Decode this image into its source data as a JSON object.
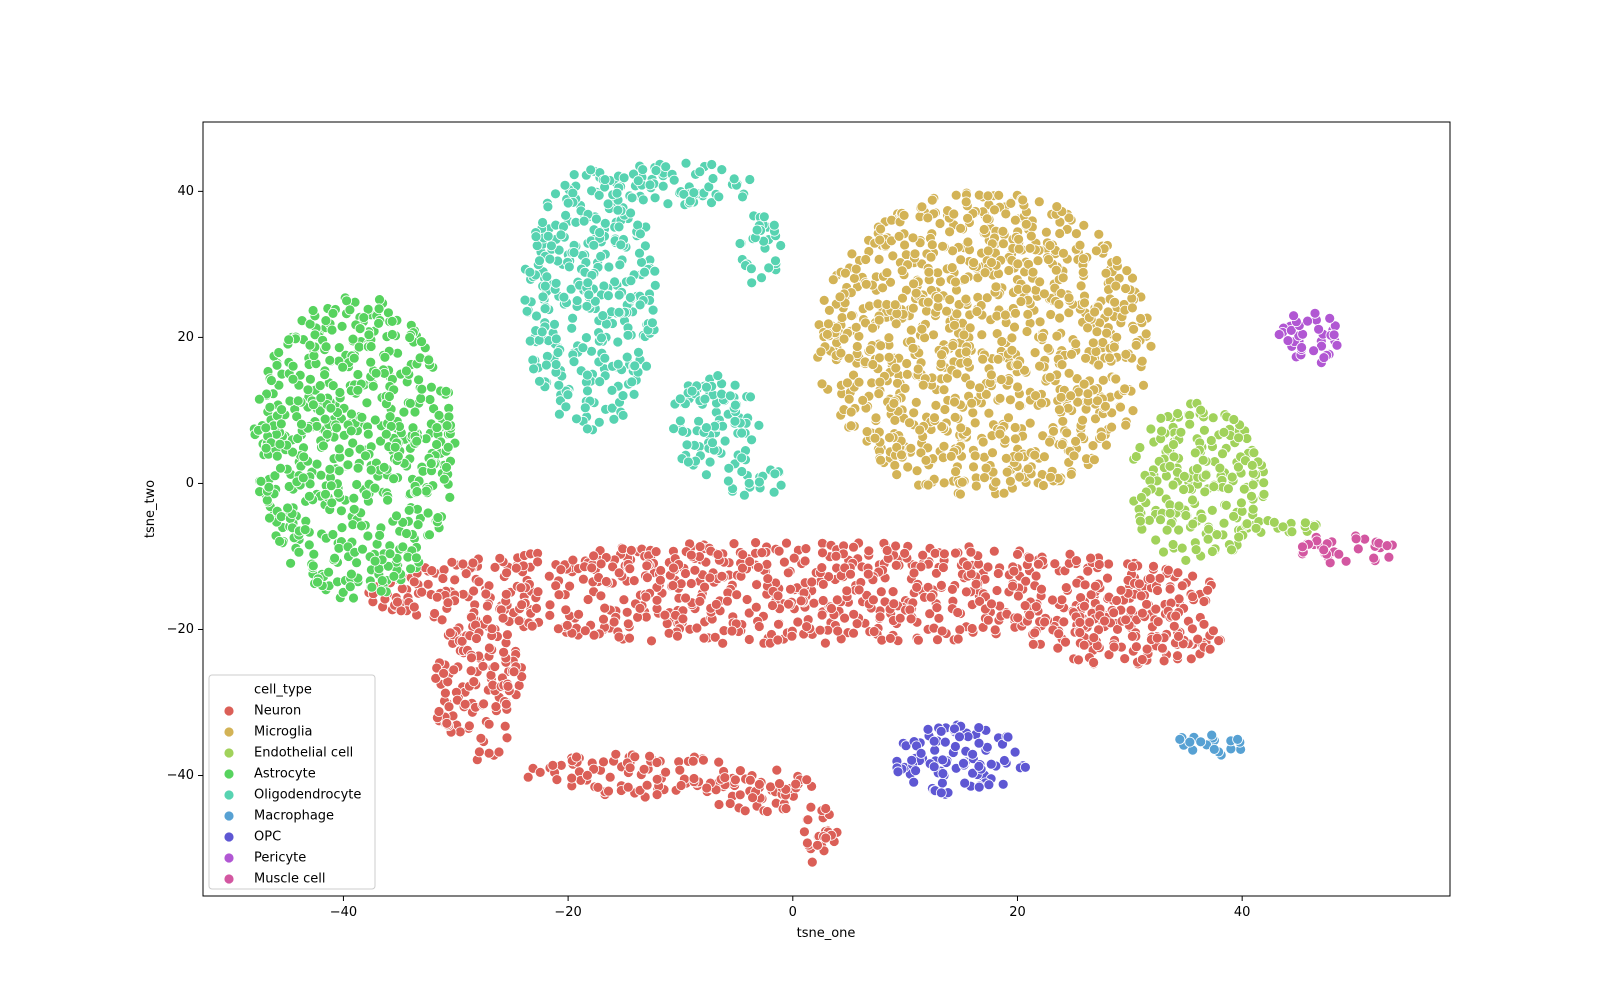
{
  "chart_data": {
    "type": "scatter",
    "xlabel": "tsne_one",
    "ylabel": "tsne_two",
    "xlim": [
      -52.5,
      58.5
    ],
    "ylim": [
      -56.5,
      49.5
    ],
    "xticks": [
      -40,
      -20,
      0,
      20,
      40
    ],
    "yticks": [
      -40,
      -20,
      0,
      20,
      40
    ],
    "x_tick_labels": [
      "−40",
      "−20",
      "0",
      "20",
      "40"
    ],
    "y_tick_labels": [
      "−40",
      "−20",
      "0",
      "20",
      "40"
    ],
    "grid": false,
    "legend": {
      "title": "cell_type",
      "placement": "lower-left"
    },
    "series": [
      {
        "name": "Neuron",
        "color": "#db5f57",
        "regions": [
          {
            "cx": 0,
            "cy": -15,
            "rx": 38,
            "ry": 7
          },
          {
            "cx": 30,
            "cy": -21,
            "rx": 9,
            "ry": 4
          },
          {
            "cx": -28,
            "cy": -28,
            "rx": 4,
            "ry": 10
          },
          {
            "cx": -14,
            "cy": -40,
            "rx": 10,
            "ry": 3
          },
          {
            "cx": -3,
            "cy": -42,
            "rx": 5,
            "ry": 3
          },
          {
            "cx": 2,
            "cy": -48,
            "rx": 2,
            "ry": 4
          }
        ]
      },
      {
        "name": "Microglia",
        "color": "#d3b356",
        "regions": [
          {
            "cx": 17,
            "cy": 19,
            "rx": 15,
            "ry": 21
          }
        ]
      },
      {
        "name": "Endothelial cell",
        "color": "#a1d25b",
        "regions": [
          {
            "cx": 36,
            "cy": 0,
            "rx": 6,
            "ry": 11
          },
          {
            "cx": 43,
            "cy": -6,
            "rx": 4,
            "ry": 1
          }
        ]
      },
      {
        "name": "Astrocyte",
        "color": "#57d35e",
        "regions": [
          {
            "cx": -39,
            "cy": 5,
            "rx": 9,
            "ry": 21
          }
        ]
      },
      {
        "name": "Oligodendrocyte",
        "color": "#57d3b1",
        "regions": [
          {
            "cx": -18,
            "cy": 25,
            "rx": 6,
            "ry": 18
          },
          {
            "cx": -10,
            "cy": 41,
            "rx": 7,
            "ry": 3
          },
          {
            "cx": -3,
            "cy": 32,
            "rx": 2,
            "ry": 5
          },
          {
            "cx": -7,
            "cy": 8,
            "rx": 4,
            "ry": 7
          },
          {
            "cx": -3,
            "cy": 0,
            "rx": 3,
            "ry": 2
          }
        ]
      },
      {
        "name": "Macrophage",
        "color": "#57a1d3",
        "regions": [
          {
            "cx": 37,
            "cy": -36,
            "rx": 3,
            "ry": 2
          }
        ]
      },
      {
        "name": "OPC",
        "color": "#5e57d3",
        "regions": [
          {
            "cx": 15,
            "cy": -38,
            "rx": 6,
            "ry": 5
          }
        ]
      },
      {
        "name": "Pericyte",
        "color": "#b157d3",
        "regions": [
          {
            "cx": 46,
            "cy": 20,
            "rx": 3,
            "ry": 4
          }
        ]
      },
      {
        "name": "Muscle cell",
        "color": "#d357a1",
        "regions": [
          {
            "cx": 49,
            "cy": -9,
            "rx": 5,
            "ry": 2
          }
        ]
      }
    ]
  }
}
